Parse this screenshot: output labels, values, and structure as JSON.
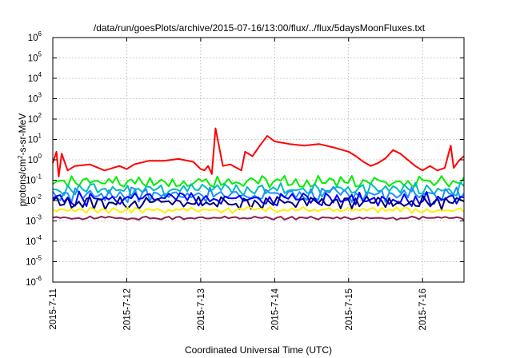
{
  "chart_data": {
    "type": "line",
    "title": "/data/run/goesPlots/archive/2015-07-16/13:00/flux/../flux/5daysMoonFluxes.txt",
    "xlabel": "Coordinated Universal Time (UTC)",
    "ylabel": "protons/cm2-s-sr-MeV",
    "y_scale": "log",
    "ylim": [
      1e-06,
      1000000.0
    ],
    "xlim_days": [
      0,
      5.56
    ],
    "x_ticks": [
      "2015-7-11",
      "2015-7-12",
      "2015-7-13",
      "2015-7-14",
      "2015-7-15",
      "2015-7-16"
    ],
    "y_ticks": [
      {
        "value": 1e-06,
        "base": "10",
        "exp": "-6"
      },
      {
        "value": 1e-05,
        "base": "10",
        "exp": "-5"
      },
      {
        "value": 0.0001,
        "base": "10",
        "exp": "-4"
      },
      {
        "value": 0.001,
        "base": "10",
        "exp": "-3"
      },
      {
        "value": 0.01,
        "base": "10",
        "exp": "-2"
      },
      {
        "value": 0.1,
        "base": "10",
        "exp": "-1"
      },
      {
        "value": 1.0,
        "base": "10",
        "exp": "0"
      },
      {
        "value": 10.0,
        "base": "10",
        "exp": "1"
      },
      {
        "value": 100.0,
        "base": "10",
        "exp": "2"
      },
      {
        "value": 1000.0,
        "base": "10",
        "exp": "3"
      },
      {
        "value": 10000.0,
        "base": "10",
        "exp": "4"
      },
      {
        "value": 100000.0,
        "base": "10",
        "exp": "5"
      },
      {
        "value": 1000000.0,
        "base": "10",
        "exp": "6"
      }
    ],
    "grid": true,
    "legend": "none",
    "series": [
      {
        "color": "#ff0000",
        "x": [
          0,
          0.05,
          0.08,
          0.12,
          0.2,
          0.3,
          0.5,
          0.7,
          0.9,
          1.0,
          1.1,
          1.3,
          1.5,
          1.7,
          1.9,
          2.0,
          2.05,
          2.1,
          2.15,
          2.2,
          2.3,
          2.4,
          2.55,
          2.6,
          2.7,
          2.8,
          2.9,
          3.0,
          3.2,
          3.4,
          3.6,
          3.8,
          4.0,
          4.1,
          4.2,
          4.3,
          4.4,
          4.5,
          4.6,
          4.7,
          4.8,
          4.9,
          5.0,
          5.1,
          5.2,
          5.3,
          5.38,
          5.42,
          5.5,
          5.56
        ],
        "y": [
          0.7,
          2.5,
          0.15,
          2.0,
          0.3,
          0.5,
          0.6,
          0.3,
          0.5,
          0.35,
          0.6,
          0.9,
          0.9,
          1.1,
          0.8,
          0.35,
          0.3,
          0.5,
          0.2,
          35,
          0.5,
          0.6,
          0.3,
          2.5,
          1.5,
          5,
          15,
          8,
          6,
          5,
          6,
          4,
          2.5,
          1.5,
          0.8,
          0.5,
          0.7,
          1.2,
          3,
          2,
          1,
          0.5,
          0.3,
          0.5,
          0.3,
          0.4,
          5,
          0.4,
          1.0,
          1.5
        ]
      },
      {
        "color": "#00ee00",
        "base": 0.08,
        "seed": 3,
        "amp": 0.28
      },
      {
        "color": "#00bbbb",
        "base": 0.035,
        "seed": 11,
        "amp": 0.32
      },
      {
        "color": "#1e90ff",
        "base": 0.02,
        "seed": 7,
        "amp": 0.35
      },
      {
        "color": "#0000ff",
        "base": 0.012,
        "seed": 5,
        "amp": 0.35
      },
      {
        "color": "#000080",
        "base": 0.008,
        "seed": 13,
        "amp": 0.3
      },
      {
        "color": "#ffee00",
        "base": 0.0035,
        "seed": 17,
        "amp": 0.15
      },
      {
        "color": "#8b2252",
        "base": 0.0014,
        "seed": 19,
        "amp": 0.08
      }
    ]
  }
}
